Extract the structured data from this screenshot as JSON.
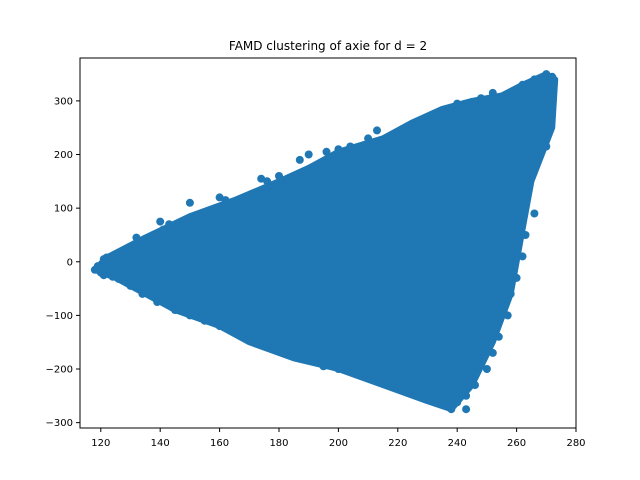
{
  "chart_data": {
    "type": "scatter",
    "title": "FAMD clustering of axie for d = 2",
    "xlabel": "",
    "ylabel": "",
    "xlim": [
      113,
      280
    ],
    "ylim": [
      -310,
      380
    ],
    "xticks": [
      120,
      140,
      160,
      180,
      200,
      220,
      240,
      260,
      280
    ],
    "yticks": [
      -300,
      -200,
      -100,
      0,
      100,
      200,
      300
    ],
    "xtick_labels": [
      "120",
      "140",
      "160",
      "180",
      "200",
      "220",
      "240",
      "260",
      "280"
    ],
    "ytick_labels": [
      "−300",
      "−200",
      "−100",
      "0",
      "100",
      "200",
      "300"
    ],
    "grid": false,
    "marker_color": "#1f77b4",
    "cluster_description": "dense triangular cloud of several thousand points spanning x≈118–273, y≈−275–350",
    "region_polygon": [
      [
        118,
        -15
      ],
      [
        122,
        8
      ],
      [
        135,
        45
      ],
      [
        150,
        85
      ],
      [
        165,
        115
      ],
      [
        180,
        150
      ],
      [
        190,
        175
      ],
      [
        200,
        205
      ],
      [
        215,
        230
      ],
      [
        225,
        260
      ],
      [
        235,
        285
      ],
      [
        245,
        300
      ],
      [
        255,
        310
      ],
      [
        262,
        330
      ],
      [
        270,
        350
      ],
      [
        273,
        340
      ],
      [
        272,
        250
      ],
      [
        265,
        150
      ],
      [
        262,
        60
      ],
      [
        258,
        -60
      ],
      [
        252,
        -150
      ],
      [
        245,
        -230
      ],
      [
        238,
        -275
      ],
      [
        230,
        -260
      ],
      [
        215,
        -230
      ],
      [
        200,
        -200
      ],
      [
        185,
        -180
      ],
      [
        170,
        -150
      ],
      [
        160,
        -120
      ],
      [
        145,
        -90
      ],
      [
        135,
        -60
      ],
      [
        125,
        -30
      ]
    ],
    "points": [
      [
        118,
        -15
      ],
      [
        119,
        -8
      ],
      [
        120,
        -20
      ],
      [
        121,
        5
      ],
      [
        121,
        -25
      ],
      [
        122,
        8
      ],
      [
        123,
        -5
      ],
      [
        124,
        -28
      ],
      [
        125,
        2
      ],
      [
        125,
        -18
      ],
      [
        132,
        45
      ],
      [
        134,
        40
      ],
      [
        140,
        75
      ],
      [
        143,
        70
      ],
      [
        141,
        60
      ],
      [
        137,
        30
      ],
      [
        150,
        110
      ],
      [
        155,
        80
      ],
      [
        160,
        120
      ],
      [
        162,
        115
      ],
      [
        166,
        100
      ],
      [
        170,
        110
      ],
      [
        174,
        155
      ],
      [
        176,
        150
      ],
      [
        180,
        160
      ],
      [
        183,
        155
      ],
      [
        187,
        190
      ],
      [
        190,
        200
      ],
      [
        196,
        205
      ],
      [
        200,
        210
      ],
      [
        204,
        215
      ],
      [
        210,
        230
      ],
      [
        213,
        245
      ],
      [
        220,
        235
      ],
      [
        228,
        250
      ],
      [
        236,
        270
      ],
      [
        240,
        295
      ],
      [
        244,
        290
      ],
      [
        248,
        305
      ],
      [
        252,
        315
      ],
      [
        256,
        310
      ],
      [
        262,
        330
      ],
      [
        266,
        340
      ],
      [
        270,
        350
      ],
      [
        272,
        345
      ],
      [
        268,
        320
      ],
      [
        272,
        290
      ],
      [
        269,
        250
      ],
      [
        270,
        215
      ],
      [
        266,
        180
      ],
      [
        264,
        140
      ],
      [
        266,
        90
      ],
      [
        263,
        50
      ],
      [
        262,
        10
      ],
      [
        260,
        -30
      ],
      [
        258,
        -60
      ],
      [
        257,
        -100
      ],
      [
        254,
        -140
      ],
      [
        252,
        -170
      ],
      [
        250,
        -200
      ],
      [
        246,
        -230
      ],
      [
        243,
        -250
      ],
      [
        240,
        -262
      ],
      [
        238,
        -275
      ],
      [
        243,
        -275
      ],
      [
        233,
        -255
      ],
      [
        229,
        -250
      ],
      [
        224,
        -235
      ],
      [
        218,
        -230
      ],
      [
        212,
        -210
      ],
      [
        206,
        -205
      ],
      [
        200,
        -200
      ],
      [
        195,
        -195
      ],
      [
        188,
        -180
      ],
      [
        182,
        -170
      ],
      [
        176,
        -155
      ],
      [
        172,
        -148
      ],
      [
        166,
        -130
      ],
      [
        160,
        -120
      ],
      [
        155,
        -110
      ],
      [
        150,
        -100
      ],
      [
        145,
        -90
      ],
      [
        139,
        -75
      ],
      [
        134,
        -60
      ],
      [
        130,
        -45
      ],
      [
        126,
        -32
      ],
      [
        245,
        130
      ],
      [
        250,
        110
      ],
      [
        255,
        90
      ],
      [
        248,
        60
      ],
      [
        252,
        30
      ],
      [
        245,
        0
      ],
      [
        240,
        -40
      ],
      [
        238,
        -80
      ],
      [
        244,
        -120
      ],
      [
        236,
        -150
      ],
      [
        230,
        -180
      ],
      [
        225,
        -160
      ],
      [
        220,
        -120
      ],
      [
        215,
        -90
      ],
      [
        210,
        -60
      ],
      [
        205,
        -30
      ],
      [
        200,
        0
      ],
      [
        195,
        30
      ],
      [
        190,
        60
      ],
      [
        185,
        90
      ],
      [
        230,
        200
      ],
      [
        225,
        170
      ],
      [
        235,
        140
      ],
      [
        228,
        110
      ],
      [
        232,
        80
      ],
      [
        226,
        50
      ],
      [
        222,
        20
      ],
      [
        218,
        -10
      ],
      [
        212,
        -40
      ],
      [
        208,
        -80
      ],
      [
        175,
        20
      ],
      [
        170,
        -10
      ],
      [
        165,
        -40
      ],
      [
        160,
        -60
      ],
      [
        155,
        -30
      ],
      [
        150,
        0
      ],
      [
        145,
        20
      ],
      [
        140,
        -10
      ],
      [
        135,
        -20
      ],
      [
        138,
        10
      ],
      [
        198,
        120
      ],
      [
        205,
        150
      ],
      [
        215,
        180
      ],
      [
        222,
        195
      ],
      [
        235,
        230
      ],
      [
        240,
        250
      ],
      [
        250,
        260
      ],
      [
        258,
        240
      ],
      [
        255,
        200
      ],
      [
        252,
        170
      ],
      [
        185,
        -120
      ],
      [
        195,
        -150
      ],
      [
        205,
        -170
      ],
      [
        215,
        -190
      ],
      [
        225,
        -210
      ],
      [
        235,
        -225
      ],
      [
        245,
        -180
      ],
      [
        240,
        -200
      ],
      [
        232,
        -130
      ],
      [
        220,
        -150
      ]
    ]
  }
}
